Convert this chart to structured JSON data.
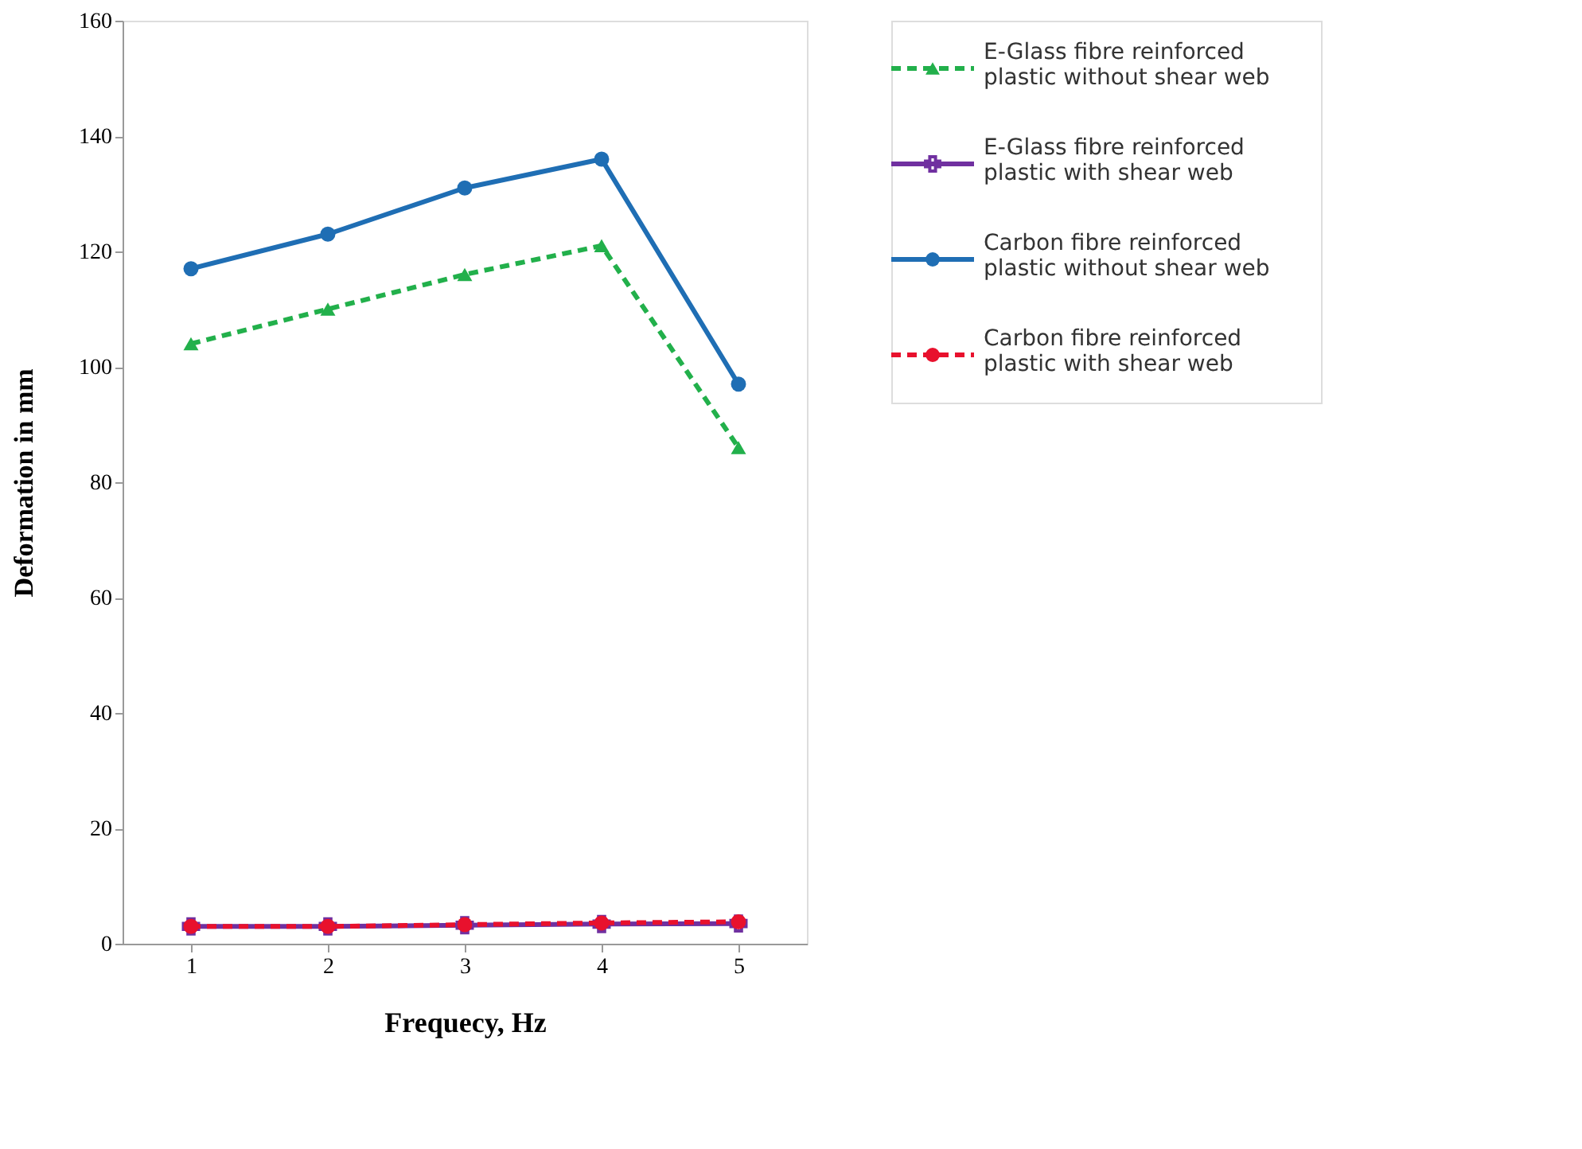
{
  "chart_data": {
    "type": "line",
    "xlabel": "Frequecy, Hz",
    "ylabel": "Deformation in mm",
    "categories": [
      "1",
      "2",
      "3",
      "4",
      "5"
    ],
    "series": [
      {
        "name": "E-Glass fibre reinforced plastic without shear web",
        "color": "#22b04b",
        "marker": "triangle",
        "line_style": "dashed",
        "values": [
          104,
          110,
          116,
          121,
          86
        ]
      },
      {
        "name": "E-Glass fibre reinforced plastic with shear web",
        "color": "#7030a0",
        "marker": "cross",
        "line_style": "solid",
        "values": [
          3,
          3,
          3.2,
          3.4,
          3.5
        ]
      },
      {
        "name": "Carbon fibre reinforced plastic without shear web",
        "color": "#1f6eb4",
        "marker": "circle",
        "line_style": "solid",
        "values": [
          117,
          123,
          131,
          136,
          97
        ]
      },
      {
        "name": "Carbon fibre reinforced plastic with shear web",
        "color": "#e8112d",
        "marker": "circle",
        "line_style": "dashed",
        "values": [
          3,
          3,
          3.3,
          3.6,
          3.8
        ]
      }
    ],
    "ylim": [
      0,
      160
    ],
    "yticks": [
      0,
      20,
      40,
      60,
      80,
      100,
      120,
      140,
      160
    ],
    "grid": false,
    "legend": "right"
  }
}
